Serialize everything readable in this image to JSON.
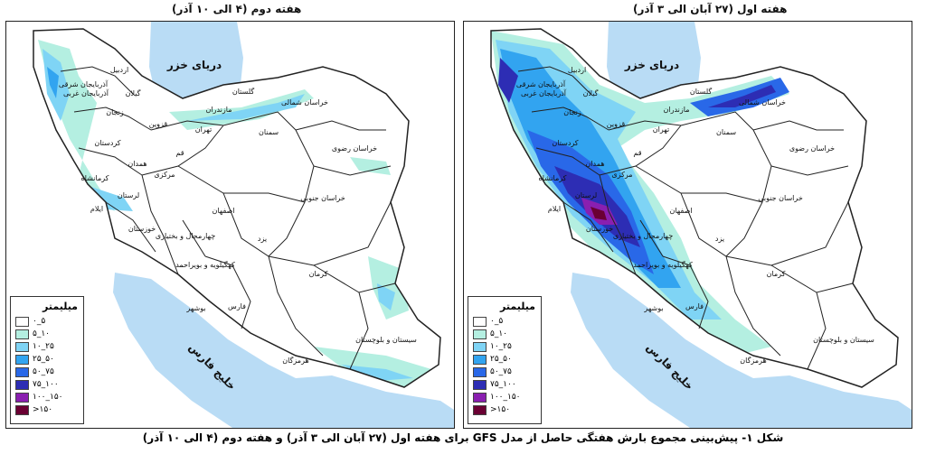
{
  "right_panel": {
    "title": "هفته اول (۲۷ آبان الی ۳ آذر)"
  },
  "left_panel": {
    "title": "هفته دوم (۴ الی ۱۰ آذر)"
  },
  "caption": "شکل ۱- پیش‌بینی مجموع بارش هفتگی حاصل از مدل GFS برای هفته اول (۲۷ آبان الی ۳ آذر) و هفته دوم (۴ الی ۱۰ آذر)",
  "legend": {
    "title": "میلیمتر",
    "items": [
      {
        "label": "۰_۵",
        "color": "#ffffff"
      },
      {
        "label": "۵_۱۰",
        "color": "#b4efe1"
      },
      {
        "label": "۱۰_۲۵",
        "color": "#7fd4f5"
      },
      {
        "label": "۲۵_۵۰",
        "color": "#32a4f0"
      },
      {
        "label": "۵۰_۷۵",
        "color": "#2968e8"
      },
      {
        "label": "۷۵_۱۰۰",
        "color": "#2d2db4"
      },
      {
        "label": "۱۰۰_۱۵۰",
        "color": "#8a1fb0"
      },
      {
        "label": ">۱۵۰",
        "color": "#6a0033"
      }
    ]
  },
  "map_labels": {
    "caspian": "دریای خزر",
    "gulf": "خلیج فارس",
    "provinces": {
      "khorasan_shomali": "خراسان شمالی",
      "khorasan_razavi": "خراسان رضوی",
      "khorasan_jonubi": "خراسان جنوبی",
      "semnan": "سمنان",
      "tehran": "تهران",
      "qazvin": "قزوین",
      "zanjan": "زنجان",
      "gilan": "گیلان",
      "mazandaran": "مازندران",
      "golestan": "گلستان",
      "ardabil": "اردبیل",
      "azarbayjan_sharghi": "آذربایجان شرقی",
      "azarbayjan_gharbi": "آذربایجان غربی",
      "kordestan": "کردستان",
      "hamedan": "همدان",
      "qom": "قم",
      "markazi": "مرکزی",
      "kermanshah": "کرمانشاه",
      "ilam": "ایلام",
      "lorestan": "لرستان",
      "esfahan": "اصفهان",
      "chaharmahal": "چهارمحال و بختیاری",
      "khuzestan": "خوزستان",
      "kohgiluyeh": "کهگیلویه و بویراحمد",
      "yazd": "یزد",
      "fars": "فارس",
      "kerman": "کرمان",
      "bushehr": "بوشهر",
      "hormozgan": "هرمزگان",
      "sistan": "سیستان و بلوچستان"
    }
  }
}
